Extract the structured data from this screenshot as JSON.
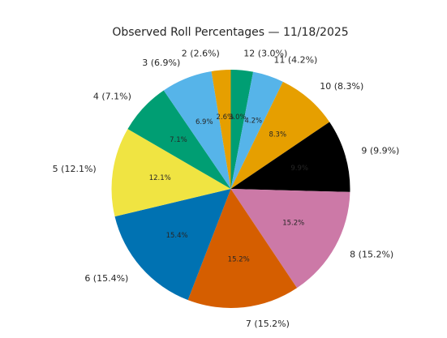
{
  "chart_data": {
    "type": "pie",
    "title": "Observed Roll Percentages — 11/18/2025",
    "start_angle_deg": 90,
    "direction": "clockwise",
    "slices": [
      {
        "category": "12",
        "label": "12 (3.0%)",
        "value": 3.0,
        "pct_label": "3.0%",
        "color": "#009E73"
      },
      {
        "category": "11",
        "label": "11 (4.2%)",
        "value": 4.2,
        "pct_label": "4.2%",
        "color": "#56B4E9"
      },
      {
        "category": "10",
        "label": "10 (8.3%)",
        "value": 8.3,
        "pct_label": "8.3%",
        "color": "#E69F00"
      },
      {
        "category": "9",
        "label": "9 (9.9%)",
        "value": 9.9,
        "pct_label": "9.9%",
        "color": "#000000"
      },
      {
        "category": "8",
        "label": "8 (15.2%)",
        "value": 15.2,
        "pct_label": "15.2%",
        "color": "#CC79A7"
      },
      {
        "category": "7",
        "label": "7 (15.2%)",
        "value": 15.2,
        "pct_label": "15.2%",
        "color": "#D55E00"
      },
      {
        "category": "6",
        "label": "6 (15.4%)",
        "value": 15.4,
        "pct_label": "15.4%",
        "color": "#0072B2"
      },
      {
        "category": "5",
        "label": "5 (12.1%)",
        "value": 12.1,
        "pct_label": "12.1%",
        "color": "#F0E442"
      },
      {
        "category": "4",
        "label": "4 (7.1%)",
        "value": 7.1,
        "pct_label": "7.1%",
        "color": "#009E73"
      },
      {
        "category": "3",
        "label": "3 (6.9%)",
        "value": 6.9,
        "pct_label": "6.9%",
        "color": "#56B4E9"
      },
      {
        "category": "2",
        "label": "2 (2.6%)",
        "value": 2.6,
        "pct_label": "2.6%",
        "color": "#E69F00"
      }
    ]
  }
}
